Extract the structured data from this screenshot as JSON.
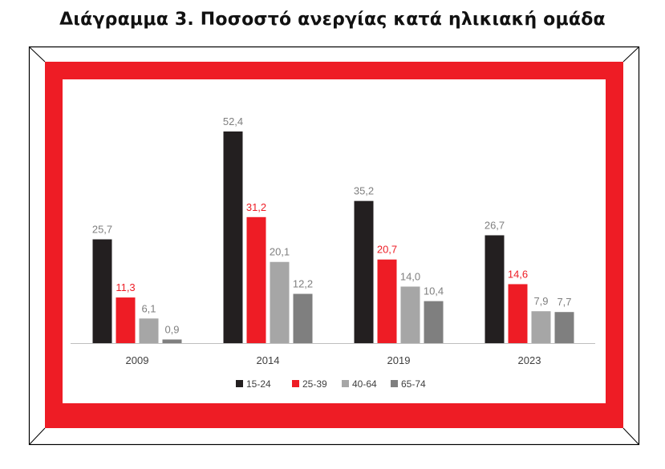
{
  "title": "Διάγραμμα 3. Ποσοστό ανεργίας κατά ηλικιακή ομάδα",
  "colors": {
    "frame_red": "#ee1c25",
    "frame_line": "#000000",
    "axis": "#bfbfbf"
  },
  "chart_data": {
    "type": "bar",
    "categories": [
      "2009",
      "2014",
      "2019",
      "2023"
    ],
    "series": [
      {
        "name": "15-24",
        "color": "#231f20",
        "label_color": "#7f7f7f",
        "values": [
          25.7,
          52.4,
          35.2,
          26.7
        ],
        "labels": [
          "25,7",
          "52,4",
          "35,2",
          "26,7"
        ]
      },
      {
        "name": "25-39",
        "color": "#ee1c25",
        "label_color": "#ee1c25",
        "values": [
          11.3,
          31.2,
          20.7,
          14.6
        ],
        "labels": [
          "11,3",
          "31,2",
          "20,7",
          "14,6"
        ]
      },
      {
        "name": "40-64",
        "color": "#a6a6a6",
        "label_color": "#7f7f7f",
        "values": [
          6.1,
          20.1,
          14.0,
          7.9
        ],
        "labels": [
          "6,1",
          "20,1",
          "14,0",
          "7,9"
        ]
      },
      {
        "name": "65-74",
        "color": "#7f7f7f",
        "label_color": "#7f7f7f",
        "values": [
          0.9,
          12.2,
          10.4,
          7.7
        ],
        "labels": [
          "0,9",
          "12,2",
          "10,4",
          "7,7"
        ]
      }
    ],
    "ylim": [
      0,
      55
    ],
    "grid": false,
    "legend_position": "bottom-center",
    "xlabel": "",
    "ylabel": ""
  }
}
